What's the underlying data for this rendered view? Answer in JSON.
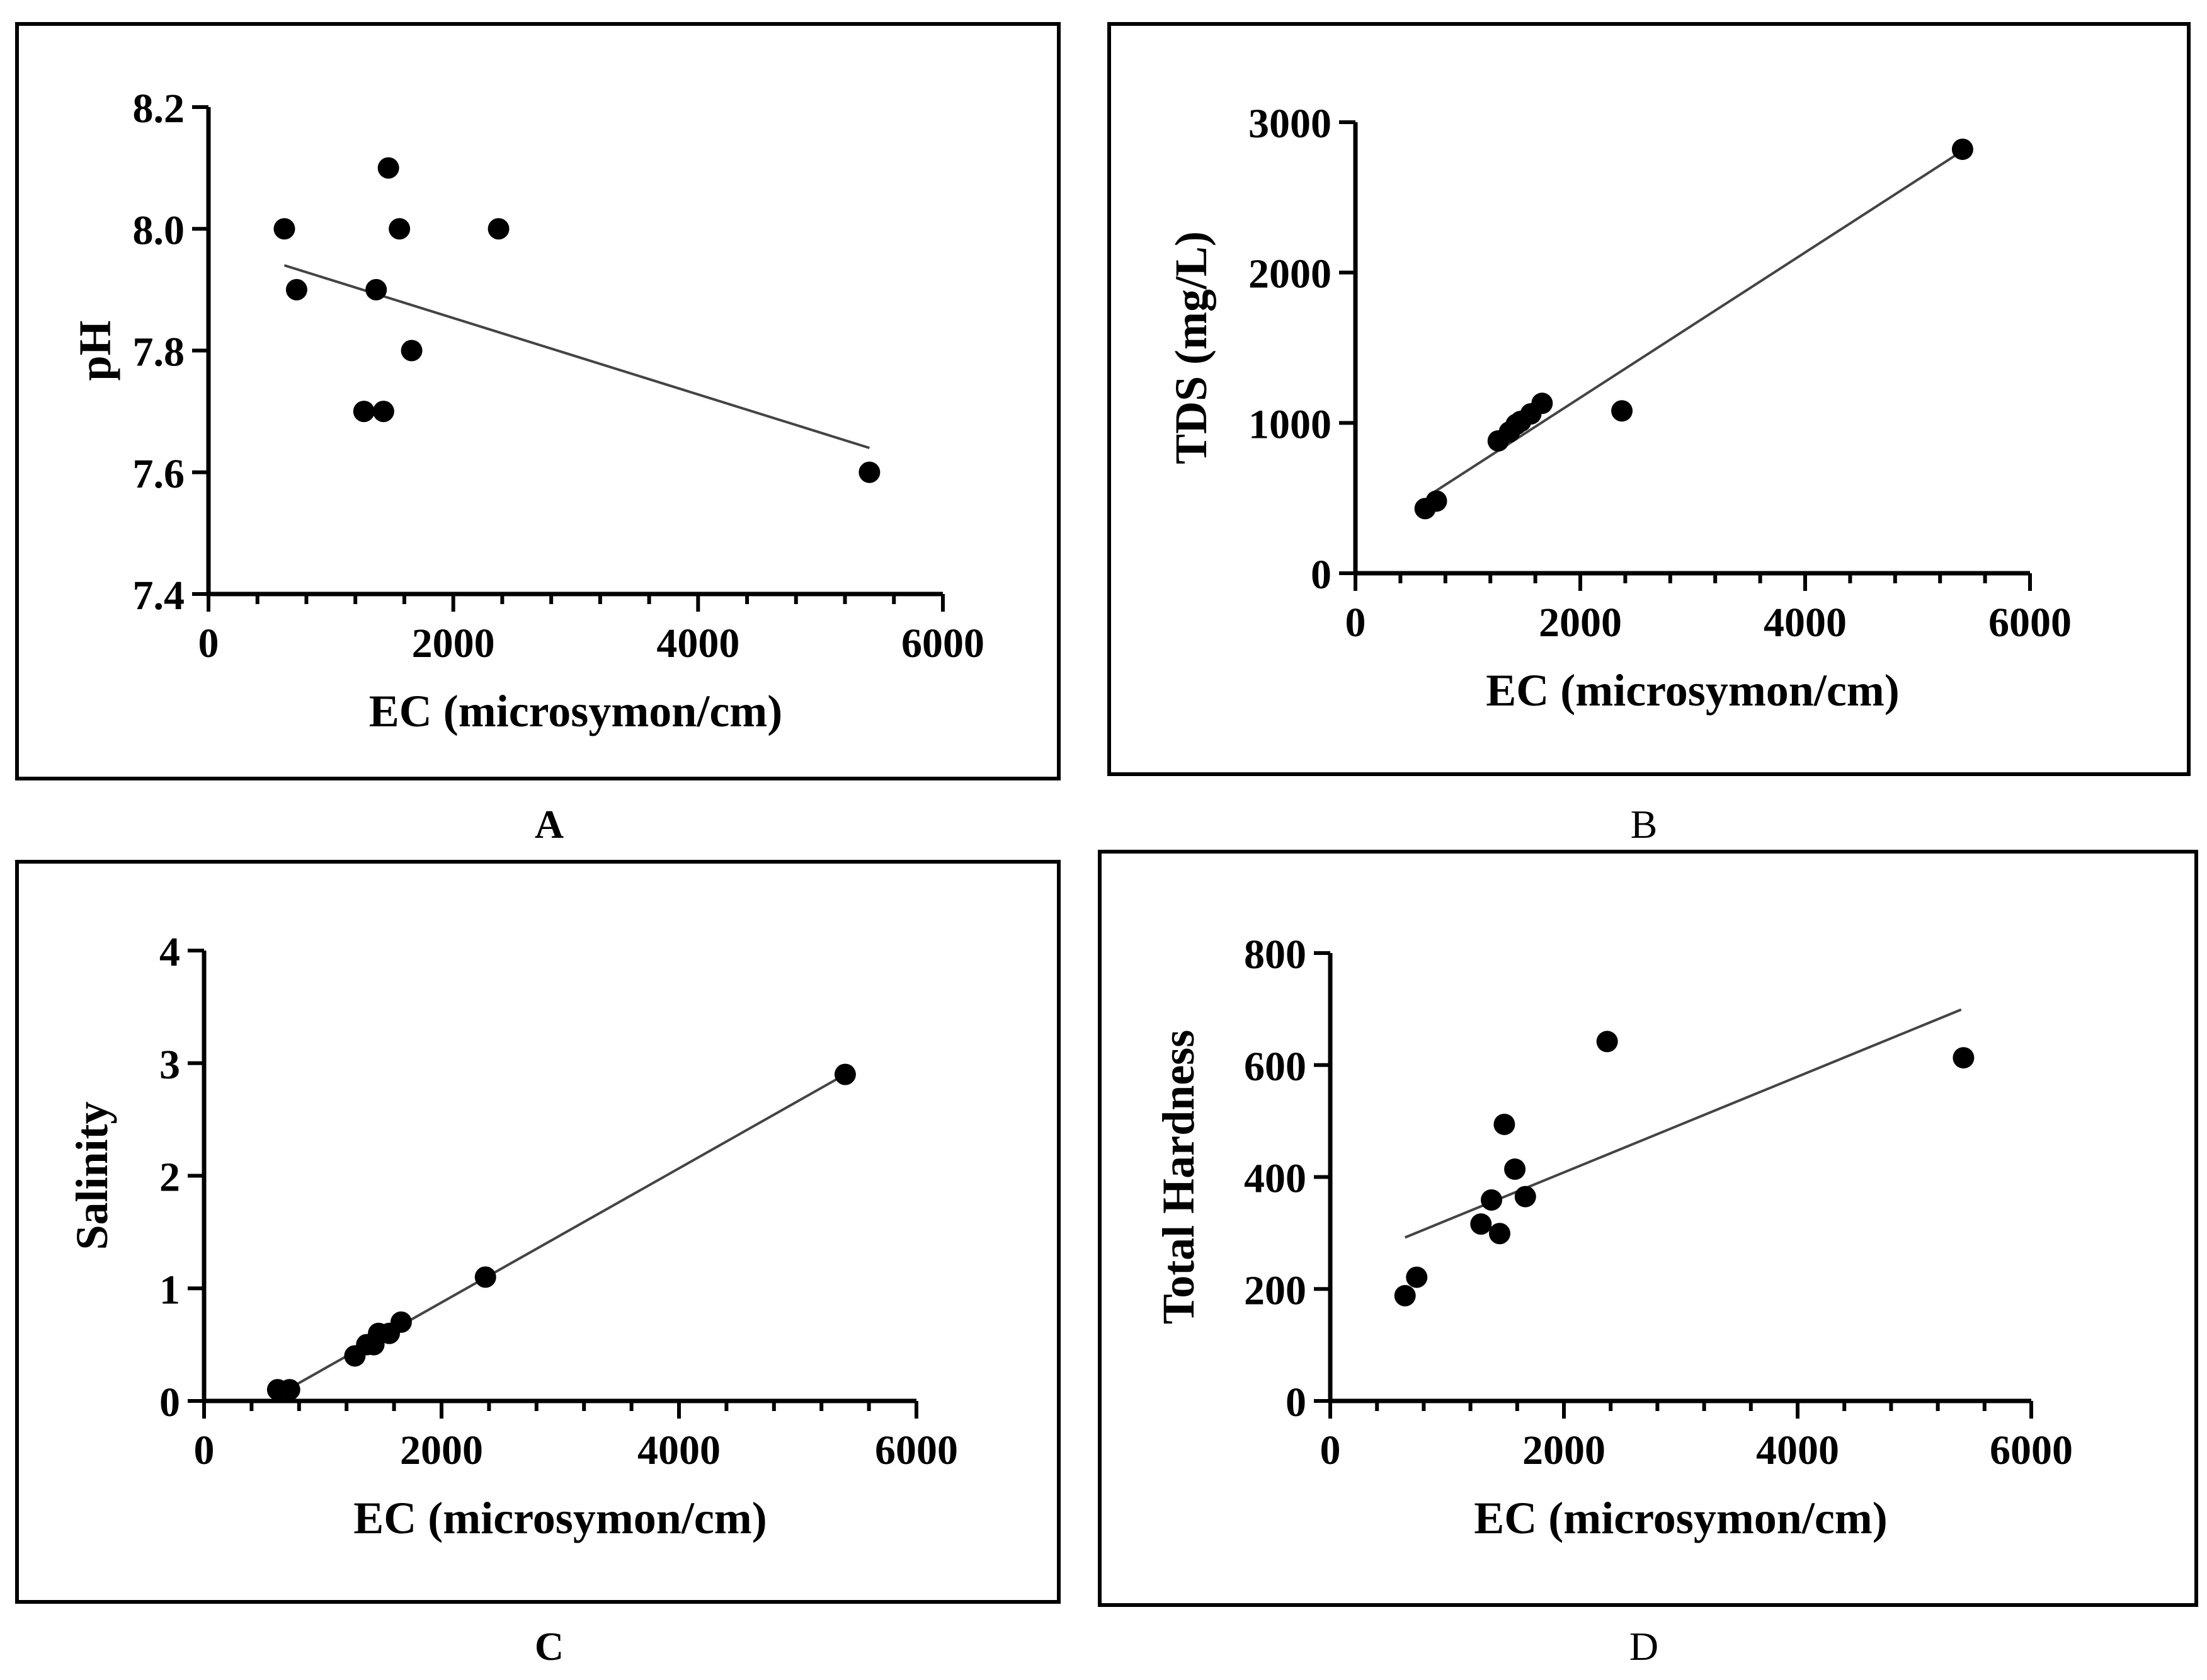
{
  "chart_data": [
    {
      "panel": "A",
      "panel_bold": true,
      "type": "scatter",
      "xlabel": "EC (microsymon/cm)",
      "ylabel": "pH",
      "xlim": [
        0,
        6000
      ],
      "ylim": [
        7.4,
        8.2
      ],
      "xticks": [
        "0",
        "2000",
        "4000",
        "6000"
      ],
      "yticks": [
        "7.4",
        "7.6",
        "7.8",
        "8.0",
        "8.2"
      ],
      "points": [
        [
          620,
          8.0
        ],
        [
          720,
          7.9
        ],
        [
          1270,
          7.7
        ],
        [
          1370,
          7.9
        ],
        [
          1430,
          7.7
        ],
        [
          1470,
          8.1
        ],
        [
          1560,
          8.0
        ],
        [
          1660,
          7.8
        ],
        [
          2370,
          8.0
        ],
        [
          5400,
          7.6
        ]
      ],
      "trendline": [
        [
          620,
          7.94
        ],
        [
          5400,
          7.64
        ]
      ]
    },
    {
      "panel": "B",
      "panel_bold": false,
      "type": "scatter",
      "xlabel": "EC (microsymon/cm)",
      "ylabel": "TDS (mg/L)",
      "xlim": [
        0,
        6000
      ],
      "ylim": [
        0,
        3000
      ],
      "xticks": [
        "0",
        "2000",
        "4000",
        "6000"
      ],
      "yticks": [
        "0",
        "1000",
        "2000",
        "3000"
      ],
      "points": [
        [
          620,
          430
        ],
        [
          720,
          480
        ],
        [
          1270,
          880
        ],
        [
          1370,
          940
        ],
        [
          1430,
          990
        ],
        [
          1470,
          1010
        ],
        [
          1560,
          1060
        ],
        [
          1660,
          1130
        ],
        [
          2370,
          1080
        ],
        [
          5400,
          2820
        ]
      ],
      "trendline": [
        [
          700,
          540
        ],
        [
          5400,
          2810
        ]
      ]
    },
    {
      "panel": "C",
      "panel_bold": true,
      "type": "scatter",
      "xlabel": "EC (microsymon/cm)",
      "ylabel": "Salinity",
      "xlim": [
        0,
        6000
      ],
      "ylim": [
        0,
        4
      ],
      "xticks": [
        "0",
        "2000",
        "4000",
        "6000"
      ],
      "yticks": [
        "0",
        "1",
        "2",
        "3",
        "4"
      ],
      "points": [
        [
          620,
          0.1
        ],
        [
          720,
          0.1
        ],
        [
          1270,
          0.4
        ],
        [
          1370,
          0.5
        ],
        [
          1430,
          0.5
        ],
        [
          1470,
          0.6
        ],
        [
          1560,
          0.6
        ],
        [
          1660,
          0.7
        ],
        [
          2370,
          1.1
        ],
        [
          5400,
          2.9
        ]
      ],
      "trendline": [
        [
          700,
          0.1
        ],
        [
          5400,
          2.9
        ]
      ]
    },
    {
      "panel": "D",
      "panel_bold": false,
      "type": "scatter",
      "xlabel": "EC (microsymon/cm)",
      "ylabel": "Total Hardness",
      "xlim": [
        0,
        6000
      ],
      "ylim": [
        0,
        800
      ],
      "xticks": [
        "0",
        "2000",
        "4000",
        "6000"
      ],
      "yticks": [
        "0",
        "200",
        "400",
        "600",
        "800"
      ],
      "points": [
        [
          640,
          188
        ],
        [
          740,
          221
        ],
        [
          1290,
          316
        ],
        [
          1380,
          359
        ],
        [
          1450,
          299
        ],
        [
          1490,
          494
        ],
        [
          1580,
          414
        ],
        [
          1670,
          365
        ],
        [
          2370,
          642
        ],
        [
          5420,
          613
        ]
      ],
      "trendline": [
        [
          640,
          292
        ],
        [
          5400,
          699
        ]
      ]
    }
  ]
}
